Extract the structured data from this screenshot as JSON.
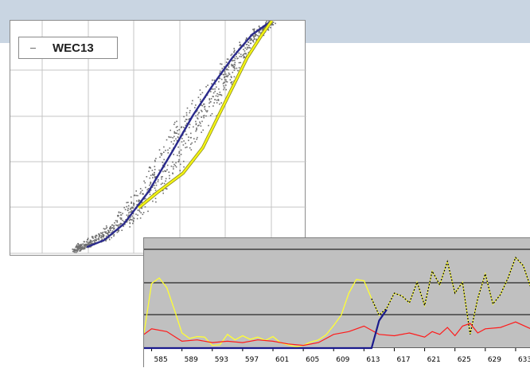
{
  "colors": {
    "band": "#c9d5e2",
    "scatter": "#6f6f6f",
    "blue_curve": "#2a2a8c",
    "yellow_curve": "#f4f414",
    "grid": "#c4c4c4",
    "plot_bg_b": "#c0c0c0",
    "red_line": "#ff1a1a",
    "navy_line": "#1a1a8c"
  },
  "chart_data": [
    {
      "type": "scatter",
      "title": "",
      "xlabel": "",
      "ylabel": "",
      "grid": true,
      "legend_position": "top-left",
      "xlim": [
        0,
        6
      ],
      "ylim": [
        0,
        5
      ],
      "series": [
        {
          "name": "WEC13",
          "kind": "scatter-band",
          "x": [
            1.3,
            1.6,
            2.0,
            2.5,
            3.0,
            3.5,
            4.0,
            4.5,
            5.0,
            5.3
          ],
          "y": [
            0.05,
            0.2,
            0.45,
            0.9,
            1.6,
            2.5,
            3.3,
            4.1,
            4.75,
            5.0
          ]
        },
        {
          "name": "",
          "kind": "line",
          "color": "#2a2a8c",
          "x": [
            1.55,
            1.9,
            2.3,
            2.8,
            3.3,
            3.7,
            4.1,
            4.5,
            4.9,
            5.3
          ],
          "y": [
            0.1,
            0.25,
            0.6,
            1.3,
            2.2,
            2.95,
            3.6,
            4.2,
            4.7,
            5.0
          ]
        },
        {
          "name": "",
          "kind": "line",
          "color": "#f4f414",
          "x": [
            2.6,
            3.0,
            3.5,
            3.9,
            4.2,
            4.5,
            4.8,
            5.1,
            5.3
          ],
          "y": [
            0.95,
            1.3,
            1.7,
            2.25,
            2.9,
            3.55,
            4.2,
            4.7,
            5.0
          ]
        }
      ]
    },
    {
      "type": "line",
      "title": "",
      "xlabel": "",
      "ylabel": "",
      "grid": true,
      "xlim": [
        584,
        635
      ],
      "ylim": [
        0,
        4
      ],
      "tick_labels": [
        "585",
        "589",
        "593",
        "597",
        "601",
        "605",
        "609",
        "613",
        "617",
        "621",
        "625",
        "629",
        "633"
      ],
      "series": [
        {
          "name": "",
          "color": "#ffff33",
          "x": [
            584,
            585,
            586,
            587,
            588,
            589,
            590,
            591,
            592,
            593,
            594,
            595,
            596,
            597,
            598,
            599,
            600,
            601,
            602,
            603,
            604,
            605,
            606,
            607,
            608,
            609,
            610,
            611,
            612,
            613,
            614,
            615,
            616,
            617,
            618,
            619,
            620,
            621,
            622,
            623,
            624,
            625,
            626,
            627,
            628,
            629,
            630,
            631,
            632,
            633,
            634,
            635
          ],
          "y": [
            0.55,
            2.35,
            2.55,
            2.2,
            1.4,
            0.55,
            0.35,
            0.42,
            0.4,
            0.1,
            0.12,
            0.5,
            0.3,
            0.45,
            0.32,
            0.4,
            0.28,
            0.42,
            0.2,
            0.12,
            0.05,
            0.1,
            0.22,
            0.3,
            0.48,
            0.82,
            1.2,
            2.0,
            2.5,
            2.45,
            1.8,
            1.2,
            1.45,
            2.0,
            1.9,
            1.65,
            2.4,
            1.55,
            2.8,
            2.3,
            3.15,
            2.0,
            2.4,
            0.5,
            1.8,
            2.7,
            1.6,
            1.95,
            2.55,
            3.3,
            3.0,
            2.2
          ]
        },
        {
          "name": "",
          "color": "#ff1a1a",
          "x": [
            584,
            585,
            587,
            589,
            591,
            593,
            595,
            597,
            599,
            601,
            603,
            605,
            607,
            609,
            611,
            613,
            614,
            615,
            617,
            619,
            621,
            622,
            623,
            624,
            625,
            626,
            627,
            628,
            629,
            631,
            633,
            635
          ],
          "y": [
            0.5,
            0.7,
            0.6,
            0.25,
            0.3,
            0.2,
            0.25,
            0.2,
            0.3,
            0.25,
            0.15,
            0.1,
            0.2,
            0.5,
            0.6,
            0.8,
            0.65,
            0.5,
            0.45,
            0.55,
            0.4,
            0.6,
            0.5,
            0.75,
            0.45,
            0.8,
            0.9,
            0.55,
            0.7,
            0.75,
            0.95,
            0.7
          ]
        },
        {
          "name": "",
          "color": "#1a1a8c",
          "x": [
            584,
            614,
            615,
            616
          ],
          "y": [
            0.0,
            0.0,
            1.0,
            1.4
          ]
        }
      ]
    }
  ],
  "legend": {
    "label": "WEC13"
  }
}
